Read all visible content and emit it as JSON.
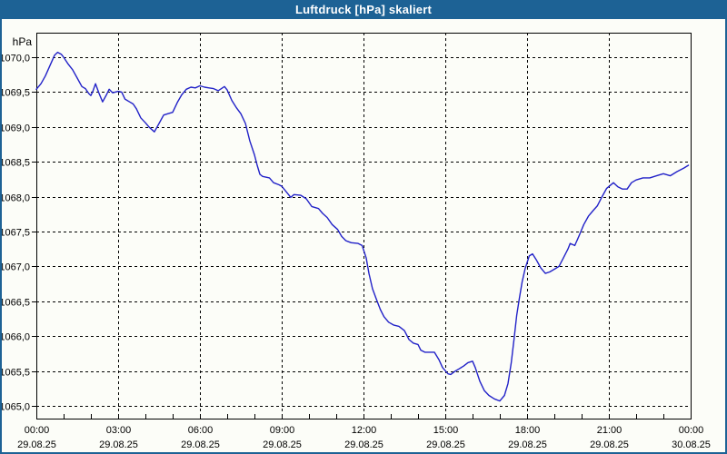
{
  "window": {
    "title": "Luftdruck [hPa] skaliert"
  },
  "colors": {
    "frame": "#1d6295",
    "titlebar": "#1d6295",
    "title_text": "#ffffff",
    "background": "#fcfdf8",
    "grid": "#000000",
    "line": "#2222c8"
  },
  "chart_data": {
    "type": "line",
    "title": "Luftdruck [hPa] skaliert",
    "unit_label": "hPa",
    "grid": "dashed",
    "legend": "none",
    "y_axis": {
      "min": 1065.0,
      "max": 1070.0,
      "step": 0.5,
      "tick_labels": [
        "1070,0",
        "1069,5",
        "1069,0",
        "1068,5",
        "1068,0",
        "1067,5",
        "1067,0",
        "1066,5",
        "1066,0",
        "1065,5",
        "1065,0"
      ]
    },
    "x_axis": {
      "start_hour": 0,
      "end_hour": 24,
      "major_step_hours": 3,
      "minor_step_hours": 1,
      "tick_labels": [
        {
          "time": "00:00",
          "date": "29.08.25"
        },
        {
          "time": "03:00",
          "date": "29.08.25"
        },
        {
          "time": "06:00",
          "date": "29.08.25"
        },
        {
          "time": "09:00",
          "date": "29.08.25"
        },
        {
          "time": "12:00",
          "date": "29.08.25"
        },
        {
          "time": "15:00",
          "date": "29.08.25"
        },
        {
          "time": "18:00",
          "date": "29.08.25"
        },
        {
          "time": "21:00",
          "date": "29.08.25"
        },
        {
          "time": "00:00",
          "date": "30.08.25"
        }
      ]
    },
    "series": [
      {
        "name": "Luftdruck",
        "color": "#2222c8",
        "points": [
          [
            0.0,
            1069.54
          ],
          [
            0.17,
            1069.62
          ],
          [
            0.33,
            1069.73
          ],
          [
            0.5,
            1069.88
          ],
          [
            0.67,
            1070.03
          ],
          [
            0.78,
            1070.07
          ],
          [
            0.92,
            1070.04
          ],
          [
            1.0,
            1070.0
          ],
          [
            1.17,
            1069.9
          ],
          [
            1.33,
            1069.82
          ],
          [
            1.5,
            1069.7
          ],
          [
            1.67,
            1069.58
          ],
          [
            1.8,
            1069.55
          ],
          [
            1.92,
            1069.48
          ],
          [
            2.0,
            1069.45
          ],
          [
            2.08,
            1069.52
          ],
          [
            2.17,
            1069.62
          ],
          [
            2.3,
            1069.48
          ],
          [
            2.43,
            1069.36
          ],
          [
            2.57,
            1069.46
          ],
          [
            2.67,
            1069.54
          ],
          [
            2.8,
            1069.49
          ],
          [
            3.0,
            1069.51
          ],
          [
            3.13,
            1069.5
          ],
          [
            3.25,
            1069.4
          ],
          [
            3.42,
            1069.36
          ],
          [
            3.55,
            1069.33
          ],
          [
            3.67,
            1069.26
          ],
          [
            3.83,
            1069.13
          ],
          [
            4.0,
            1069.06
          ],
          [
            4.13,
            1069.0
          ],
          [
            4.33,
            1068.93
          ],
          [
            4.5,
            1069.05
          ],
          [
            4.67,
            1069.17
          ],
          [
            4.83,
            1069.19
          ],
          [
            5.0,
            1069.21
          ],
          [
            5.17,
            1069.35
          ],
          [
            5.33,
            1069.46
          ],
          [
            5.5,
            1069.54
          ],
          [
            5.67,
            1069.57
          ],
          [
            5.83,
            1069.56
          ],
          [
            6.0,
            1069.59
          ],
          [
            6.17,
            1069.57
          ],
          [
            6.33,
            1069.56
          ],
          [
            6.5,
            1069.55
          ],
          [
            6.67,
            1069.52
          ],
          [
            6.9,
            1069.58
          ],
          [
            7.0,
            1069.53
          ],
          [
            7.17,
            1069.38
          ],
          [
            7.33,
            1069.28
          ],
          [
            7.5,
            1069.19
          ],
          [
            7.67,
            1069.05
          ],
          [
            7.83,
            1068.8
          ],
          [
            8.0,
            1068.6
          ],
          [
            8.1,
            1068.45
          ],
          [
            8.2,
            1068.32
          ],
          [
            8.3,
            1068.29
          ],
          [
            8.55,
            1068.27
          ],
          [
            8.7,
            1068.2
          ],
          [
            8.9,
            1068.17
          ],
          [
            9.0,
            1068.15
          ],
          [
            9.25,
            1068.03
          ],
          [
            9.33,
            1067.99
          ],
          [
            9.45,
            1068.03
          ],
          [
            9.7,
            1068.02
          ],
          [
            9.9,
            1067.97
          ],
          [
            10.1,
            1067.86
          ],
          [
            10.35,
            1067.83
          ],
          [
            10.5,
            1067.76
          ],
          [
            10.67,
            1067.7
          ],
          [
            10.85,
            1067.6
          ],
          [
            11.05,
            1067.53
          ],
          [
            11.2,
            1067.43
          ],
          [
            11.35,
            1067.37
          ],
          [
            11.55,
            1067.34
          ],
          [
            11.8,
            1067.33
          ],
          [
            11.95,
            1067.3
          ],
          [
            12.1,
            1067.12
          ],
          [
            12.2,
            1066.9
          ],
          [
            12.33,
            1066.68
          ],
          [
            12.5,
            1066.5
          ],
          [
            12.62,
            1066.38
          ],
          [
            12.75,
            1066.28
          ],
          [
            12.92,
            1066.2
          ],
          [
            13.1,
            1066.16
          ],
          [
            13.3,
            1066.14
          ],
          [
            13.5,
            1066.08
          ],
          [
            13.67,
            1065.95
          ],
          [
            13.83,
            1065.9
          ],
          [
            14.0,
            1065.88
          ],
          [
            14.1,
            1065.8
          ],
          [
            14.25,
            1065.77
          ],
          [
            14.6,
            1065.77
          ],
          [
            14.77,
            1065.66
          ],
          [
            14.9,
            1065.55
          ],
          [
            15.1,
            1065.46
          ],
          [
            15.2,
            1065.45
          ],
          [
            15.33,
            1065.49
          ],
          [
            15.5,
            1065.53
          ],
          [
            15.67,
            1065.57
          ],
          [
            15.83,
            1065.62
          ],
          [
            16.0,
            1065.64
          ],
          [
            16.1,
            1065.55
          ],
          [
            16.27,
            1065.35
          ],
          [
            16.43,
            1065.22
          ],
          [
            16.6,
            1065.15
          ],
          [
            16.8,
            1065.1
          ],
          [
            17.0,
            1065.07
          ],
          [
            17.17,
            1065.15
          ],
          [
            17.3,
            1065.32
          ],
          [
            17.42,
            1065.62
          ],
          [
            17.52,
            1065.95
          ],
          [
            17.62,
            1066.3
          ],
          [
            17.72,
            1066.55
          ],
          [
            17.82,
            1066.78
          ],
          [
            17.93,
            1066.97
          ],
          [
            18.08,
            1067.15
          ],
          [
            18.2,
            1067.18
          ],
          [
            18.33,
            1067.1
          ],
          [
            18.5,
            1066.98
          ],
          [
            18.67,
            1066.9
          ],
          [
            18.83,
            1066.92
          ],
          [
            19.0,
            1066.96
          ],
          [
            19.17,
            1067.0
          ],
          [
            19.33,
            1067.12
          ],
          [
            19.5,
            1067.25
          ],
          [
            19.58,
            1067.33
          ],
          [
            19.75,
            1067.3
          ],
          [
            19.92,
            1067.45
          ],
          [
            20.08,
            1067.6
          ],
          [
            20.25,
            1067.72
          ],
          [
            20.42,
            1067.8
          ],
          [
            20.58,
            1067.87
          ],
          [
            20.75,
            1068.0
          ],
          [
            20.92,
            1068.12
          ],
          [
            21.17,
            1068.2
          ],
          [
            21.33,
            1068.14
          ],
          [
            21.5,
            1068.11
          ],
          [
            21.67,
            1068.11
          ],
          [
            21.83,
            1068.2
          ],
          [
            22.0,
            1068.24
          ],
          [
            22.25,
            1068.27
          ],
          [
            22.5,
            1068.27
          ],
          [
            22.75,
            1068.3
          ],
          [
            23.0,
            1068.33
          ],
          [
            23.25,
            1068.3
          ],
          [
            23.5,
            1068.36
          ],
          [
            23.75,
            1068.41
          ],
          [
            23.92,
            1068.45
          ]
        ]
      }
    ]
  }
}
